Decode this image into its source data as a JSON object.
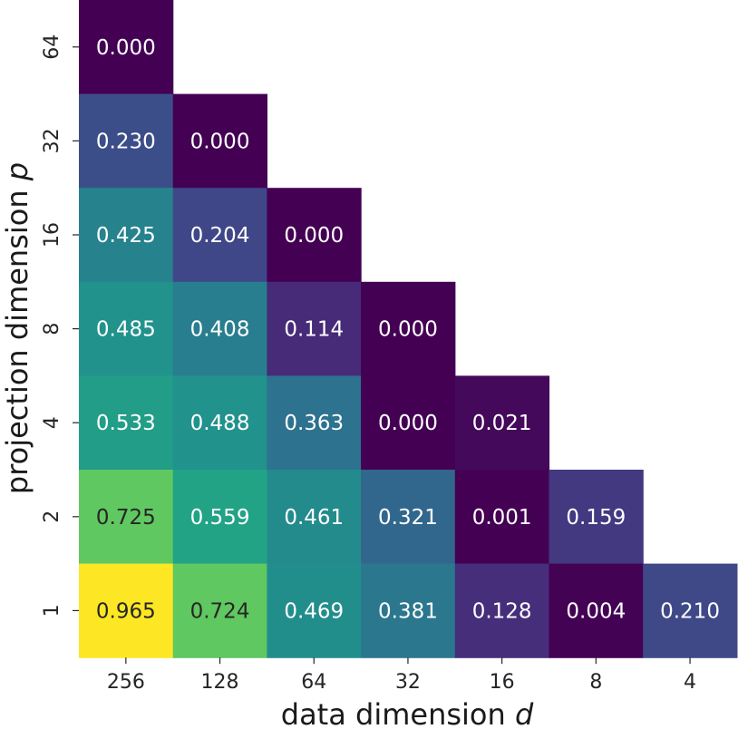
{
  "chart_data": {
    "type": "heatmap",
    "title": "",
    "xlabel": "data dimension",
    "xlabel_var": "d",
    "ylabel": "projection dimension",
    "ylabel_var": "p",
    "x_categories": [
      "256",
      "128",
      "64",
      "32",
      "16",
      "8",
      "4"
    ],
    "y_categories": [
      "64",
      "32",
      "16",
      "8",
      "4",
      "2",
      "1"
    ],
    "colormap": "viridis",
    "vmin": 0.0,
    "vmax": 0.965,
    "grid": false,
    "legend": "none",
    "values": [
      [
        0.0,
        null,
        null,
        null,
        null,
        null,
        null
      ],
      [
        0.23,
        0.0,
        null,
        null,
        null,
        null,
        null
      ],
      [
        0.425,
        0.204,
        0.0,
        null,
        null,
        null,
        null
      ],
      [
        0.485,
        0.408,
        0.114,
        0.0,
        null,
        null,
        null
      ],
      [
        0.533,
        0.488,
        0.363,
        0.0,
        0.021,
        null,
        null
      ],
      [
        0.725,
        0.559,
        0.461,
        0.321,
        0.001,
        0.159,
        null
      ],
      [
        0.965,
        0.724,
        0.469,
        0.381,
        0.128,
        0.004,
        0.21
      ]
    ]
  }
}
